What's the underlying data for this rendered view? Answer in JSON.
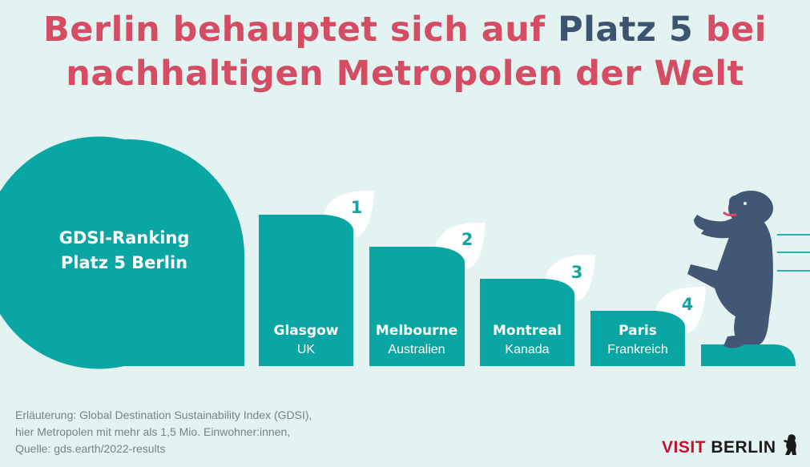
{
  "title": {
    "part1": "Berlin behauptet sich auf ",
    "highlight": "Platz 5",
    "part2": " bei",
    "line2": "nachhaltigen Metropolen der Welt"
  },
  "ranking": {
    "line1": "GDSI-Ranking",
    "line2": "Platz 5 Berlin"
  },
  "cities": [
    {
      "rank": "1",
      "name": "Glasgow",
      "country": "UK"
    },
    {
      "rank": "2",
      "name": "Melbourne",
      "country": "Australien"
    },
    {
      "rank": "3",
      "name": "Montreal",
      "country": "Kanada"
    },
    {
      "rank": "4",
      "name": "Paris",
      "country": "Frankreich"
    }
  ],
  "note": {
    "line1": "Erläuterung: Global Destination Sustainability Index (GDSI),",
    "line2": "hier Metropolen mit mehr als 1,5 Mio. Einwohner:innen,",
    "line3": "Quelle: gds.earth/2022-results"
  },
  "logo": {
    "visit": "VISIT",
    "berlin": "BERLIN"
  },
  "colors": {
    "teal": "#0aa6a3",
    "title_red": "#d44d63",
    "title_navy": "#3d5470",
    "bear": "#415774",
    "background": "#e3f3f2"
  },
  "icons": [
    "leaf-icon",
    "berlin-bear-icon",
    "speed-lines-icon"
  ]
}
